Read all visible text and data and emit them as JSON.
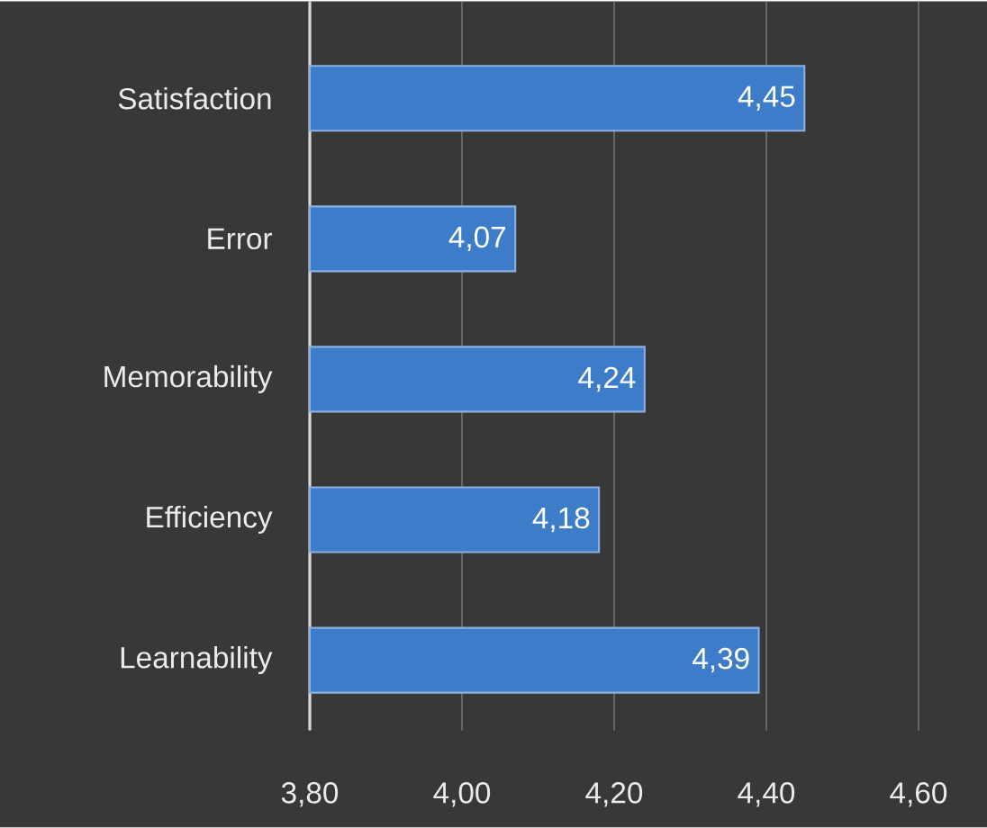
{
  "chart_data": {
    "type": "bar",
    "orientation": "horizontal",
    "categories": [
      "Satisfaction",
      "Error",
      "Memorability",
      "Efficiency",
      "Learnability"
    ],
    "values": [
      4.45,
      4.07,
      4.24,
      4.18,
      4.39
    ],
    "value_labels": [
      "4,45",
      "4,07",
      "4,24",
      "4,18",
      "4,39"
    ],
    "color": "#3d7cc9",
    "xlim": [
      3.8,
      4.6
    ],
    "xticks": [
      {
        "value": 3.8,
        "label": "3,80"
      },
      {
        "value": 4.0,
        "label": "4,00"
      },
      {
        "value": 4.2,
        "label": "4,20"
      },
      {
        "value": 4.4,
        "label": "4,40"
      },
      {
        "value": 4.6,
        "label": "4,60"
      }
    ],
    "grid": "x"
  }
}
